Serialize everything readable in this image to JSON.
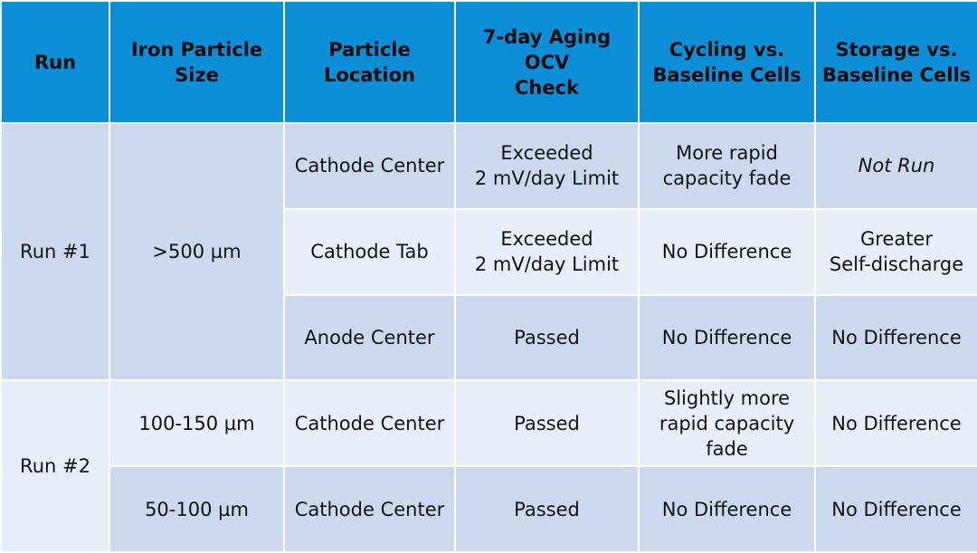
{
  "table": {
    "headers": [
      "Run",
      "Iron Particle\nSize",
      "Particle\nLocation",
      "7-day Aging OCV\nCheck",
      "Cycling vs.\nBaseline Cells",
      "Storage vs.\nBaseline Cells"
    ],
    "run1": {
      "run_label": "Run #1",
      "size": ">500 µm",
      "rows": [
        {
          "location": "Cathode Center",
          "ocv": "Exceeded\n2 mV/day Limit",
          "cycling": "More rapid\ncapacity fade",
          "storage": "Not Run"
        },
        {
          "location": "Cathode Tab",
          "ocv": "Exceeded\n2 mV/day Limit",
          "cycling": "No Difference",
          "storage": "Greater\nSelf-discharge"
        },
        {
          "location": "Anode Center",
          "ocv": "Passed",
          "cycling": "No Difference",
          "storage": "No Difference"
        }
      ]
    },
    "run2": {
      "run_label": "Run #2",
      "rows": [
        {
          "size": "100-150 µm",
          "location": "Cathode Center",
          "ocv": "Passed",
          "cycling": "Slightly more\nrapid capacity\nfade",
          "storage": "No Difference"
        },
        {
          "size": "50-100 µm",
          "location": "Cathode Center",
          "ocv": "Passed",
          "cycling": "No Difference",
          "storage": "No Difference"
        }
      ]
    }
  },
  "colors": {
    "header_bg": "#0c8fd6",
    "row_dark": "#cbd8ed",
    "row_light": "#e8eef8",
    "highlight_text": "#e1131a"
  }
}
